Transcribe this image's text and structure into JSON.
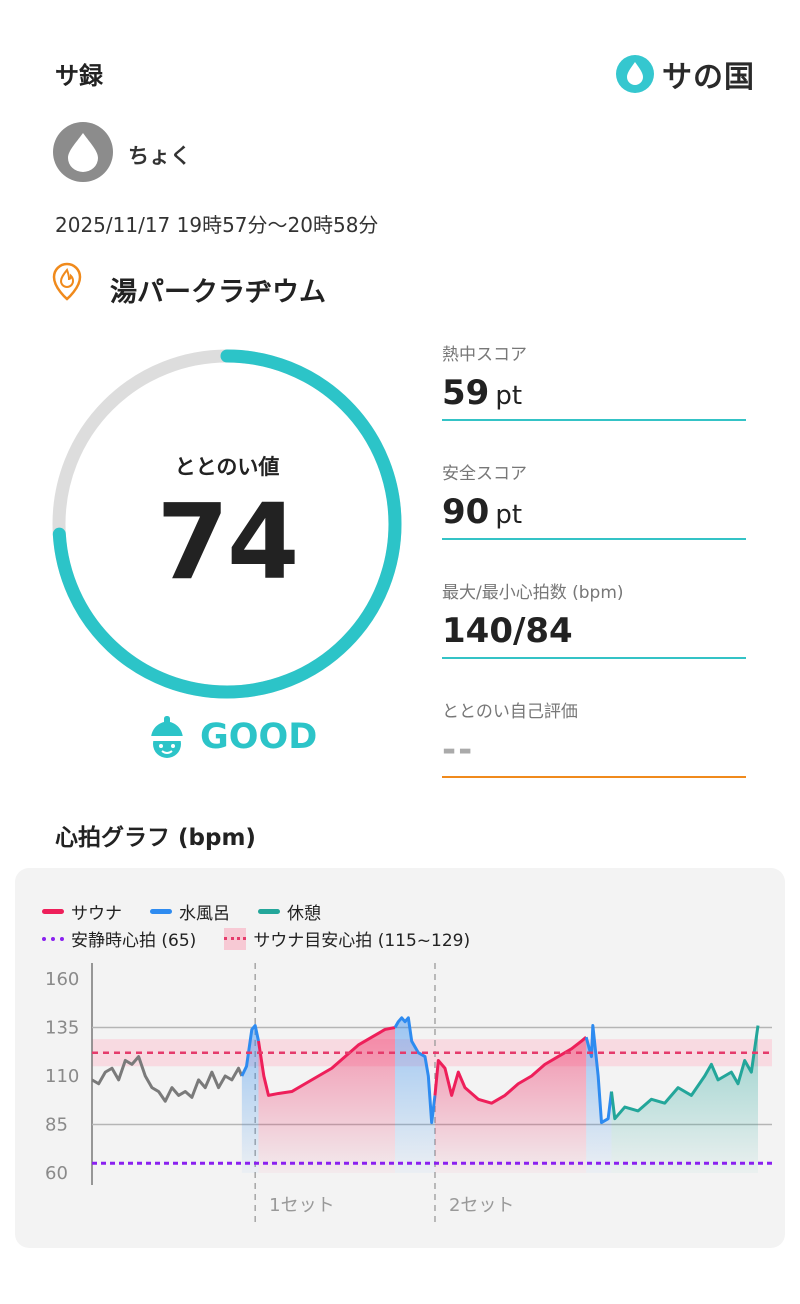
{
  "header": {
    "title": "サ録",
    "logo_text": "サの国",
    "logo_icon": "water-drop-icon"
  },
  "user": {
    "name": "ちょく"
  },
  "session": {
    "datetime": "2025/11/17 19時57分〜20時58分"
  },
  "facility": {
    "name": "湯パークラヂウム"
  },
  "score": {
    "label": "ととのい値",
    "value": "74",
    "progress": 0.74,
    "rating": "GOOD",
    "accent": "#2cc4c8"
  },
  "stats": [
    {
      "label": "熱中スコア",
      "value": "59",
      "unit": "pt"
    },
    {
      "label": "安全スコア",
      "value": "90",
      "unit": "pt"
    },
    {
      "label": "最大/最小心拍数 (bpm)",
      "value": "140/84",
      "unit": ""
    },
    {
      "label": "ととのい自己評価",
      "value": "--",
      "unit": ""
    }
  ],
  "heart_graph": {
    "title": "心拍グラフ (bpm)",
    "legend": {
      "sauna": "サウナ",
      "cold_bath": "水風呂",
      "rest": "休憩",
      "resting_hr": "安静時心拍 (65)",
      "target_zone": "サウナ目安心拍 (115~129)"
    },
    "colors": {
      "sauna": "#ee1f5a",
      "cold_bath": "#2e8bf0",
      "rest": "#23a69a",
      "other": "#7a7a7a",
      "resting_line": "#8a20f0",
      "target_line": "#e53b6b"
    },
    "set_labels": [
      "1セット",
      "2セット"
    ]
  },
  "chart_data": {
    "type": "line",
    "ylabel": "bpm",
    "ylim": [
      60,
      160
    ],
    "yticks": [
      160,
      135,
      110,
      85,
      60
    ],
    "reference_lines": {
      "resting": 65,
      "target_low": 115,
      "target_high": 129
    },
    "set_dividers": [
      0.245,
      0.515
    ],
    "segments": [
      {
        "phase": "other",
        "points": [
          [
            0,
            108
          ],
          [
            0.01,
            106
          ],
          [
            0.02,
            112
          ],
          [
            0.03,
            114
          ],
          [
            0.04,
            108
          ],
          [
            0.05,
            118
          ],
          [
            0.06,
            116
          ],
          [
            0.07,
            120
          ],
          [
            0.08,
            110
          ],
          [
            0.09,
            104
          ],
          [
            0.1,
            102
          ],
          [
            0.11,
            97
          ],
          [
            0.12,
            104
          ],
          [
            0.13,
            100
          ],
          [
            0.14,
            102
          ],
          [
            0.15,
            99
          ],
          [
            0.16,
            108
          ],
          [
            0.17,
            104
          ],
          [
            0.18,
            112
          ],
          [
            0.19,
            104
          ],
          [
            0.2,
            110
          ],
          [
            0.21,
            108
          ],
          [
            0.22,
            114
          ],
          [
            0.225,
            110
          ]
        ]
      },
      {
        "phase": "cold_bath",
        "points": [
          [
            0.225,
            110
          ],
          [
            0.232,
            115
          ],
          [
            0.24,
            134
          ],
          [
            0.245,
            136
          ],
          [
            0.25,
            128
          ]
        ]
      },
      {
        "phase": "sauna",
        "points": [
          [
            0.25,
            128
          ],
          [
            0.258,
            110
          ],
          [
            0.265,
            100
          ],
          [
            0.28,
            101
          ],
          [
            0.3,
            102
          ],
          [
            0.32,
            106
          ],
          [
            0.34,
            110
          ],
          [
            0.36,
            114
          ],
          [
            0.38,
            120
          ],
          [
            0.4,
            126
          ],
          [
            0.42,
            130
          ],
          [
            0.44,
            134
          ],
          [
            0.455,
            135
          ]
        ]
      },
      {
        "phase": "cold_bath",
        "points": [
          [
            0.455,
            135
          ],
          [
            0.46,
            138
          ],
          [
            0.465,
            140
          ],
          [
            0.47,
            138
          ],
          [
            0.475,
            140
          ],
          [
            0.48,
            128
          ],
          [
            0.49,
            122
          ],
          [
            0.5,
            120
          ],
          [
            0.505,
            110
          ],
          [
            0.51,
            86
          ],
          [
            0.515,
            100
          ]
        ]
      },
      {
        "phase": "sauna",
        "points": [
          [
            0.515,
            100
          ],
          [
            0.52,
            118
          ],
          [
            0.53,
            114
          ],
          [
            0.54,
            100
          ],
          [
            0.55,
            112
          ],
          [
            0.56,
            104
          ],
          [
            0.58,
            98
          ],
          [
            0.6,
            96
          ],
          [
            0.62,
            100
          ],
          [
            0.64,
            106
          ],
          [
            0.66,
            110
          ],
          [
            0.68,
            116
          ],
          [
            0.7,
            120
          ],
          [
            0.72,
            124
          ],
          [
            0.735,
            128
          ],
          [
            0.742,
            130
          ]
        ]
      },
      {
        "phase": "cold_bath",
        "points": [
          [
            0.742,
            130
          ],
          [
            0.75,
            120
          ],
          [
            0.752,
            136
          ],
          [
            0.76,
            110
          ],
          [
            0.765,
            86
          ],
          [
            0.775,
            88
          ],
          [
            0.78,
            102
          ]
        ]
      },
      {
        "phase": "rest",
        "points": [
          [
            0.78,
            102
          ],
          [
            0.785,
            88
          ],
          [
            0.8,
            94
          ],
          [
            0.82,
            92
          ],
          [
            0.84,
            98
          ],
          [
            0.86,
            96
          ],
          [
            0.88,
            104
          ],
          [
            0.9,
            100
          ],
          [
            0.92,
            110
          ],
          [
            0.93,
            116
          ],
          [
            0.94,
            108
          ],
          [
            0.96,
            112
          ],
          [
            0.97,
            106
          ],
          [
            0.98,
            118
          ],
          [
            0.99,
            112
          ],
          [
            1.0,
            136
          ]
        ]
      }
    ]
  }
}
